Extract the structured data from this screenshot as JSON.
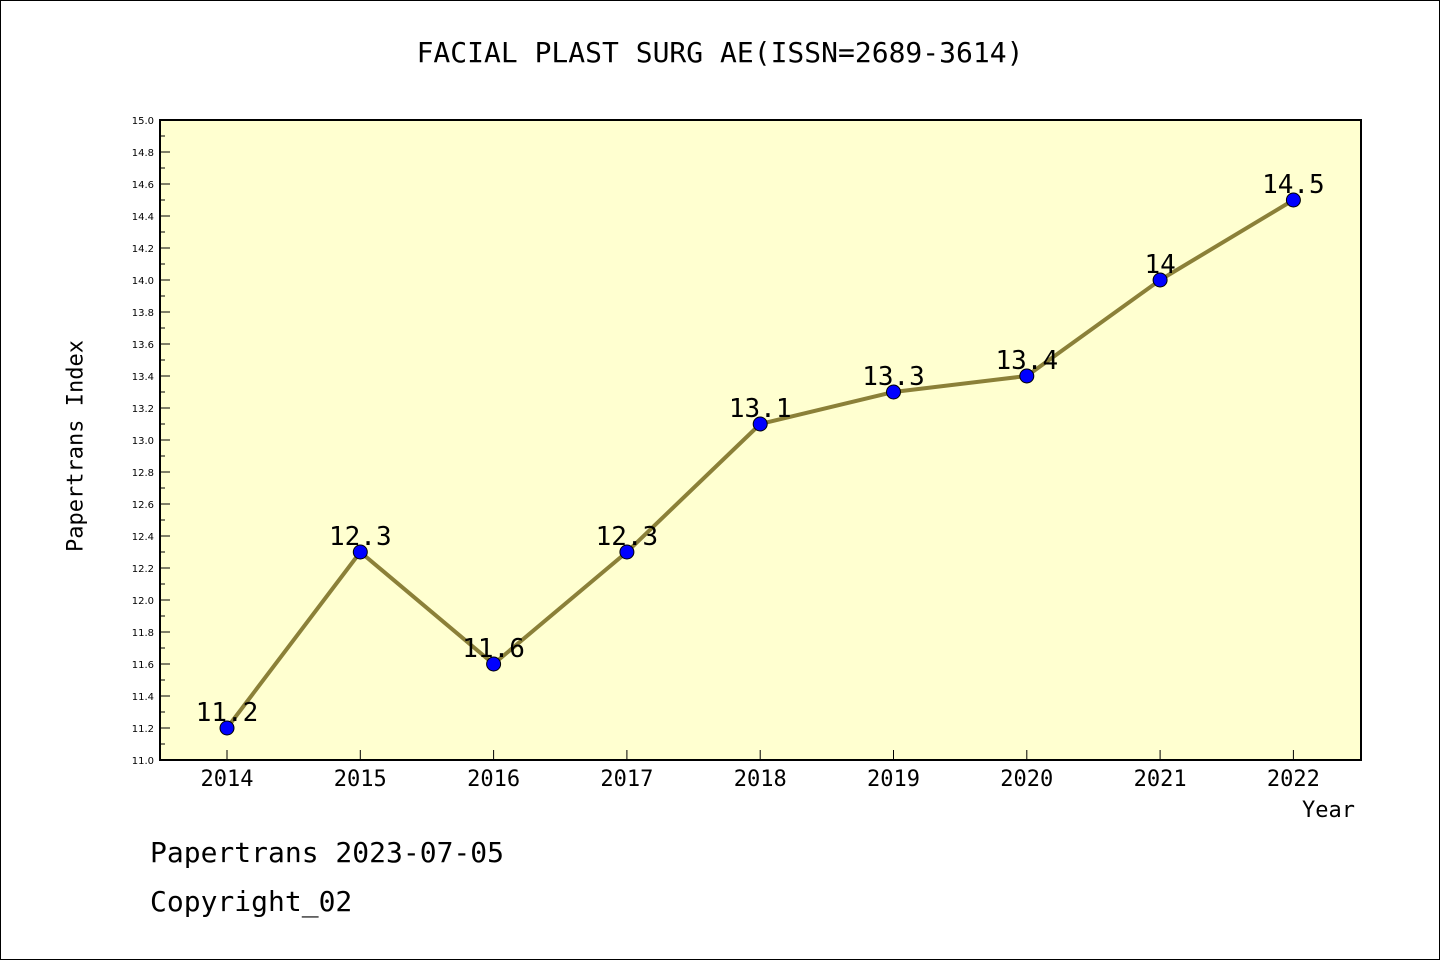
{
  "title": "FACIAL PLAST SURG AE(ISSN=2689-3614)",
  "footer": {
    "date_line": "Papertrans 2023-07-05",
    "copyright": "Copyright_02"
  },
  "colors": {
    "plot_background": "#ffffd0",
    "line": "#8b8038",
    "marker": "#0000ff"
  },
  "chart_data": {
    "type": "line",
    "title": "FACIAL PLAST SURG AE(ISSN=2689-3614)",
    "xlabel": "Year",
    "ylabel": "Papertrans Index",
    "categories": [
      "2014",
      "2015",
      "2016",
      "2017",
      "2018",
      "2019",
      "2020",
      "2021",
      "2022"
    ],
    "series": [
      {
        "values": [
          11.2,
          12.3,
          11.6,
          12.3,
          13.1,
          13.3,
          13.4,
          14.0,
          14.5
        ],
        "data_labels": [
          "11.2",
          "12.3",
          "11.6",
          "12.3",
          "13.1",
          "13.3",
          "13.4",
          "14",
          "14.5"
        ]
      }
    ],
    "ylim": [
      11.0,
      15.0
    ],
    "yticks": [
      "11.0",
      "11.2",
      "11.4",
      "11.6",
      "11.8",
      "12.0",
      "12.2",
      "12.4",
      "12.6",
      "12.8",
      "13.0",
      "13.2",
      "13.4",
      "13.6",
      "13.8",
      "14.0",
      "14.2",
      "14.4",
      "14.6",
      "14.8",
      "15.0"
    ],
    "grid": false,
    "legend": "none"
  }
}
